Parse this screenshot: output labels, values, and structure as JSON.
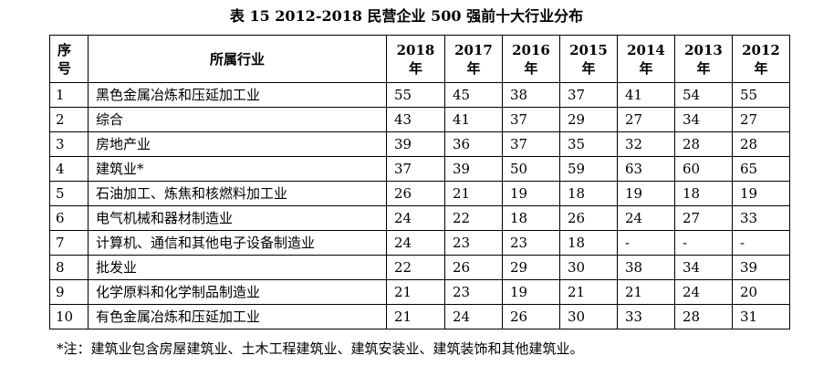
{
  "title": "表 15  2012-2018 民营企业 500 强前十大行业分布",
  "table": {
    "header": {
      "seq_line1": "序",
      "seq_line2": "号",
      "industry": "所属行业",
      "years": [
        {
          "num": "2018",
          "unit": "年"
        },
        {
          "num": "2017",
          "unit": "年"
        },
        {
          "num": "2016",
          "unit": "年"
        },
        {
          "num": "2015",
          "unit": "年"
        },
        {
          "num": "2014",
          "unit": "年"
        },
        {
          "num": "2013",
          "unit": "年"
        },
        {
          "num": "2012",
          "unit": "年"
        }
      ]
    },
    "rows": [
      {
        "seq": "1",
        "industry": "黑色金属冶炼和压延加工业",
        "values": [
          "55",
          "45",
          "38",
          "37",
          "41",
          "54",
          "55"
        ]
      },
      {
        "seq": "2",
        "industry": "综合",
        "values": [
          "43",
          "41",
          "37",
          "29",
          "27",
          "34",
          "27"
        ]
      },
      {
        "seq": "3",
        "industry": "房地产业",
        "values": [
          "39",
          "36",
          "37",
          "35",
          "32",
          "28",
          "28"
        ]
      },
      {
        "seq": "4",
        "industry": "建筑业*",
        "values": [
          "37",
          "39",
          "50",
          "59",
          "63",
          "60",
          "65"
        ]
      },
      {
        "seq": "5",
        "industry": "石油加工、炼焦和核燃料加工业",
        "values": [
          "26",
          "21",
          "19",
          "18",
          "19",
          "18",
          "19"
        ]
      },
      {
        "seq": "6",
        "industry": "电气机械和器材制造业",
        "values": [
          "24",
          "22",
          "18",
          "26",
          "24",
          "27",
          "33"
        ]
      },
      {
        "seq": "7",
        "industry": "计算机、通信和其他电子设备制造业",
        "values": [
          "24",
          "23",
          "23",
          "18",
          "-",
          "-",
          "-"
        ]
      },
      {
        "seq": "8",
        "industry": "批发业",
        "values": [
          "22",
          "26",
          "29",
          "30",
          "38",
          "34",
          "39"
        ]
      },
      {
        "seq": "9",
        "industry": "化学原料和化学制品制造业",
        "values": [
          "21",
          "23",
          "19",
          "21",
          "21",
          "24",
          "20"
        ]
      },
      {
        "seq": "10",
        "industry": "有色金属冶炼和压延加工业",
        "values": [
          "21",
          "24",
          "26",
          "30",
          "33",
          "28",
          "31"
        ]
      }
    ]
  },
  "note": "*注：建筑业包含房屋建筑业、土木工程建筑业、建筑安装业、建筑装饰和其他建筑业。"
}
